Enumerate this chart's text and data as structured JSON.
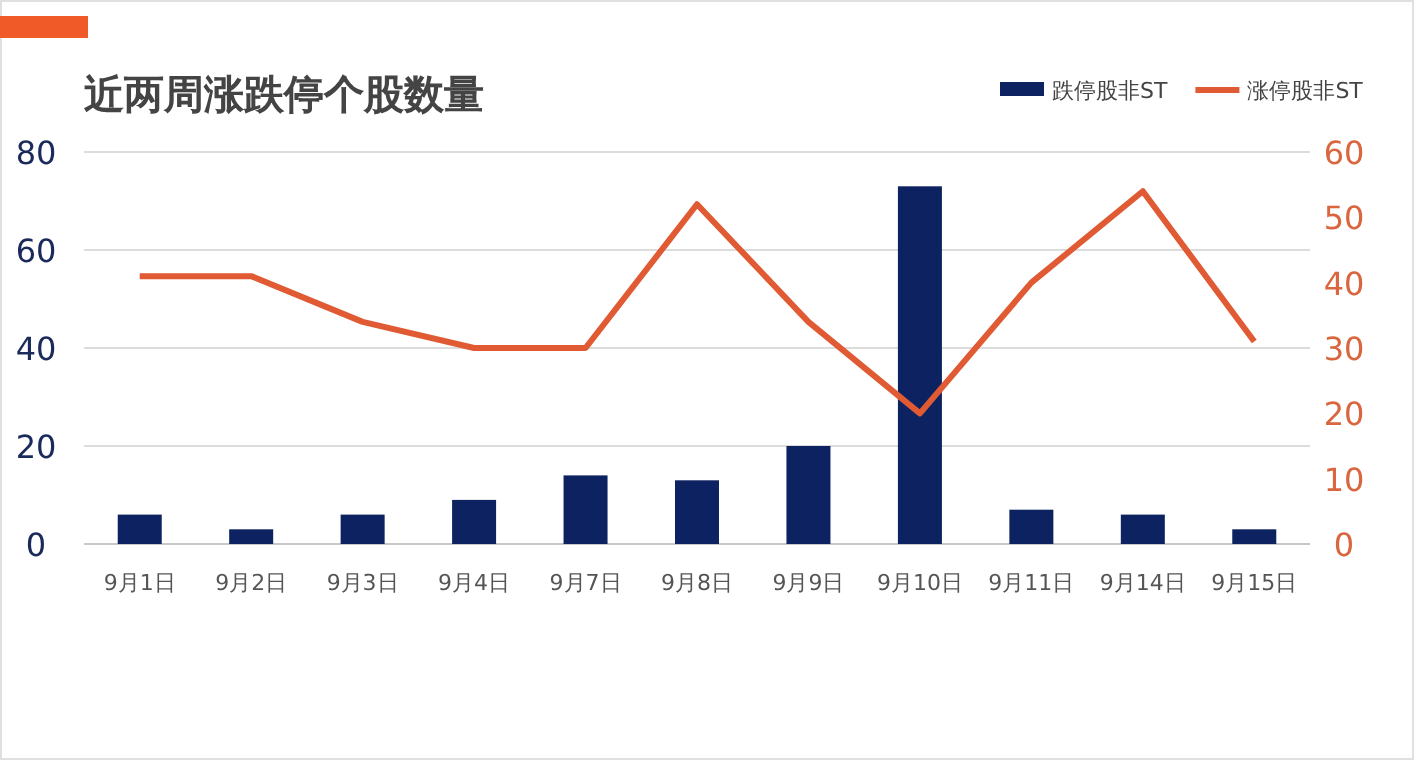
{
  "chart_data": {
    "type": "bar",
    "title": "近两周涨跌停个股数量",
    "categories": [
      "9月1日",
      "9月2日",
      "9月3日",
      "9月4日",
      "9月7日",
      "9月8日",
      "9月9日",
      "9月10日",
      "9月11日",
      "9月14日",
      "9月15日"
    ],
    "series": [
      {
        "name": "跌停股非ST",
        "color": "#0d2260",
        "values": [
          6,
          3,
          6,
          9,
          14,
          13,
          20,
          73,
          7,
          6,
          3
        ]
      },
      {
        "name": "涨停股非ST",
        "type": "line",
        "axis": "y2",
        "color": "#e05a33",
        "values": [
          41,
          41,
          34,
          30,
          30,
          52,
          34,
          20,
          40,
          54,
          31
        ]
      }
    ],
    "ylim": [
      0,
      80
    ],
    "yticks": [
      0,
      20,
      40,
      60,
      80
    ],
    "y2lim": [
      0,
      60
    ],
    "y2ticks": [
      0,
      10,
      20,
      30,
      40,
      50,
      60
    ],
    "grid": "y",
    "legend": "top right"
  }
}
